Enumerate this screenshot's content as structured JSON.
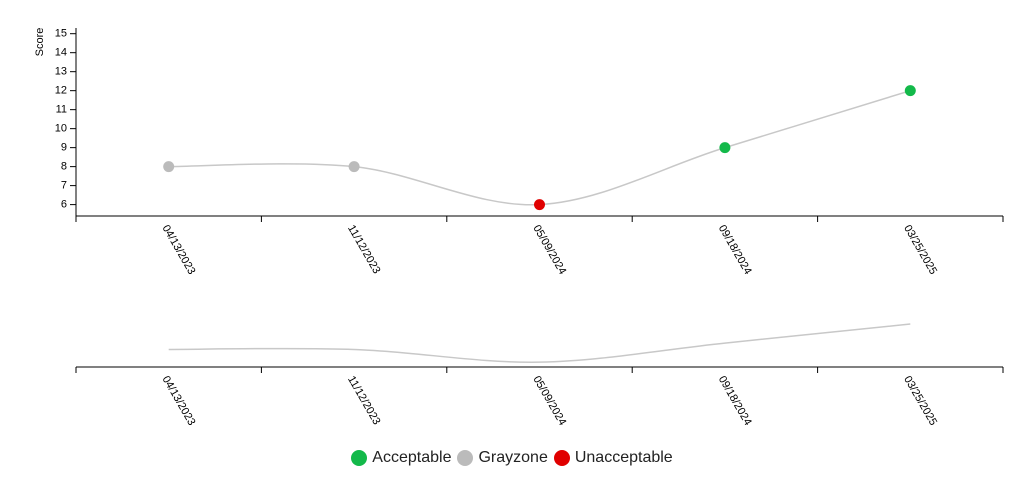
{
  "chart_data": {
    "type": "line",
    "y_label": "Score",
    "categories": [
      "04/13/2023",
      "11/12/2023",
      "05/09/2024",
      "09/18/2024",
      "03/25/2025"
    ],
    "values": [
      8,
      8,
      6,
      9,
      12
    ],
    "point_colors": [
      "#bbbbbb",
      "#bbbbbb",
      "#e00000",
      "#13b94a",
      "#13b94a"
    ],
    "line_color": "#c8c8c8",
    "ylim": [
      5.4,
      15.3
    ],
    "yticks": [
      6,
      7,
      8,
      9,
      10,
      11,
      12,
      13,
      14,
      15
    ],
    "legend": [
      {
        "name": "Acceptable",
        "color": "#13b94a"
      },
      {
        "name": "Grayzone",
        "color": "#bbbbbb"
      },
      {
        "name": "Unacceptable",
        "color": "#e00000"
      }
    ]
  }
}
